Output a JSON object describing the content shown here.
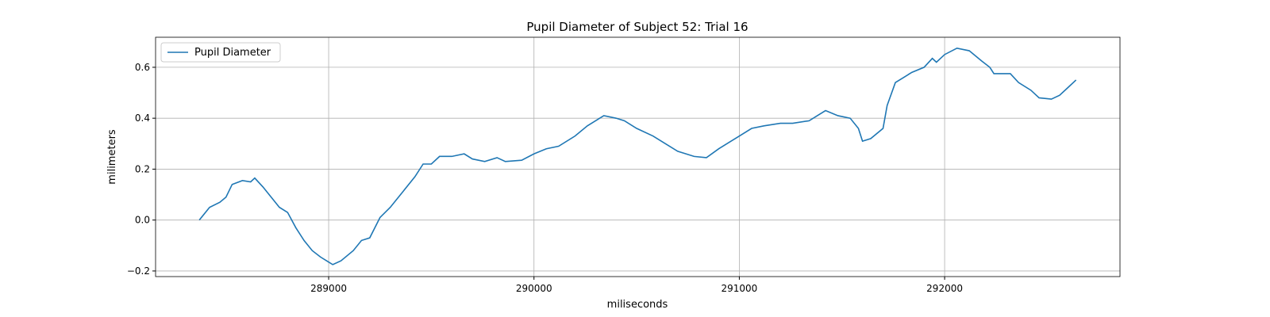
{
  "chart_data": {
    "type": "line",
    "title": "Pupil Diameter of Subject 52: Trial 16",
    "x_label": "miliseconds",
    "y_label": "milimeters",
    "x": [
      288370,
      288420,
      288470,
      288500,
      288530,
      288580,
      288620,
      288640,
      288680,
      288720,
      288760,
      288800,
      288840,
      288880,
      288920,
      288960,
      289000,
      289020,
      289060,
      289120,
      289160,
      289200,
      289250,
      289300,
      289360,
      289420,
      289460,
      289500,
      289540,
      289600,
      289660,
      289700,
      289760,
      289820,
      289860,
      289940,
      290000,
      290060,
      290120,
      290200,
      290260,
      290340,
      290400,
      290440,
      290500,
      290580,
      290640,
      290700,
      290780,
      290840,
      290900,
      290960,
      291000,
      291060,
      291120,
      291200,
      291260,
      291340,
      291380,
      291420,
      291480,
      291540,
      291580,
      291600,
      291640,
      291700,
      291720,
      291760,
      291800,
      291840,
      291900,
      291940,
      291960,
      292000,
      292060,
      292120,
      292180,
      292220,
      292240,
      292320,
      292360,
      292420,
      292460,
      292520,
      292560,
      292600,
      292640
    ],
    "series": [
      {
        "name": "Pupil Diameter",
        "color": "#1f77b4",
        "values": [
          0.0,
          0.05,
          0.07,
          0.09,
          0.14,
          0.155,
          0.15,
          0.165,
          0.13,
          0.09,
          0.05,
          0.03,
          -0.03,
          -0.08,
          -0.12,
          -0.145,
          -0.165,
          -0.175,
          -0.16,
          -0.12,
          -0.08,
          -0.07,
          0.01,
          0.05,
          0.11,
          0.17,
          0.22,
          0.22,
          0.25,
          0.25,
          0.26,
          0.24,
          0.23,
          0.245,
          0.23,
          0.235,
          0.26,
          0.28,
          0.29,
          0.33,
          0.37,
          0.41,
          0.4,
          0.39,
          0.36,
          0.33,
          0.3,
          0.27,
          0.25,
          0.245,
          0.28,
          0.31,
          0.33,
          0.36,
          0.37,
          0.38,
          0.38,
          0.39,
          0.41,
          0.43,
          0.41,
          0.4,
          0.36,
          0.31,
          0.32,
          0.36,
          0.45,
          0.54,
          0.56,
          0.58,
          0.6,
          0.635,
          0.62,
          0.65,
          0.675,
          0.665,
          0.625,
          0.6,
          0.575,
          0.575,
          0.54,
          0.51,
          0.48,
          0.475,
          0.49,
          0.52,
          0.55
        ]
      }
    ],
    "xlim": [
      288157,
      292854
    ],
    "ylim": [
      -0.222,
      0.718
    ],
    "xticks": [
      289000,
      290000,
      291000,
      292000
    ],
    "yticks": [
      {
        "value": -0.2,
        "label": "−0.2"
      },
      {
        "value": 0,
        "label": "0.0"
      },
      0.2,
      0.4,
      0.6
    ],
    "grid": true,
    "legend": "upper-left"
  }
}
